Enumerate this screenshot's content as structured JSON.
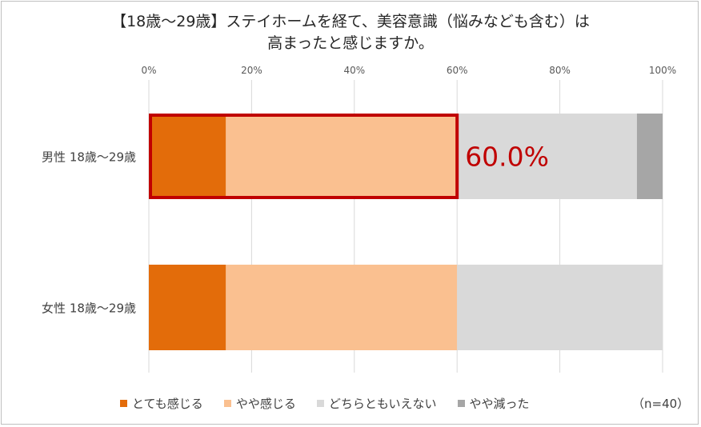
{
  "title": {
    "line1": "【18歳～29歳】ステイホームを経て、美容意識（悩みなども含む）は",
    "line2": "高まったと感じますか。"
  },
  "note": "（n=40）",
  "highlight": {
    "series_index": 0,
    "label": "60.0%"
  },
  "chart_data": {
    "type": "bar",
    "orientation": "horizontal",
    "stacked": true,
    "categories": [
      "男性 18歳～29歳",
      "女性 18歳～29歳"
    ],
    "series": [
      {
        "name": "とても感じる",
        "color": "#e36c0a",
        "values": [
          15,
          15
        ]
      },
      {
        "name": "やや感じる",
        "color": "#fac090",
        "values": [
          45,
          45
        ]
      },
      {
        "name": "どちらともいえない",
        "color": "#d9d9d9",
        "values": [
          35,
          40
        ]
      },
      {
        "name": "やや減った",
        "color": "#a6a6a6",
        "values": [
          5,
          0
        ]
      }
    ],
    "xlim": [
      0,
      100
    ],
    "x_ticks": [
      "0%",
      "20%",
      "40%",
      "60%",
      "80%",
      "100%"
    ],
    "grid": true,
    "legend": "bottom"
  }
}
